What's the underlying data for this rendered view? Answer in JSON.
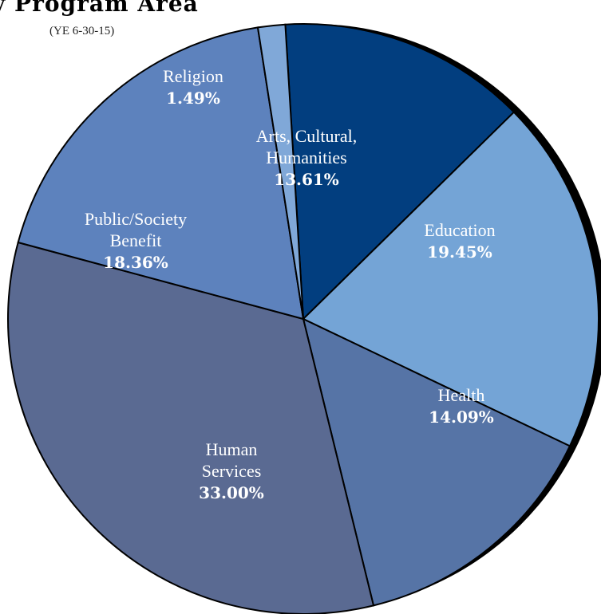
{
  "chart_data": {
    "type": "pie",
    "title": "y Program Area",
    "subtitle": "(YE 6-30-15)",
    "slices": [
      {
        "name": "Arts, Cultural, Humanities",
        "label_lines": [
          "Arts, Cultural,",
          "Humanities"
        ],
        "value": 13.61,
        "value_label": "13.61%",
        "color": "#023e7f"
      },
      {
        "name": "Education",
        "label_lines": [
          "Education"
        ],
        "value": 19.45,
        "value_label": "19.45%",
        "color": "#74a4d6"
      },
      {
        "name": "Health",
        "label_lines": [
          "Health"
        ],
        "value": 14.09,
        "value_label": "14.09%",
        "color": "#5674a6"
      },
      {
        "name": "Human Services",
        "label_lines": [
          "Human",
          "Services"
        ],
        "value": 33.0,
        "value_label": "33.00%",
        "color": "#5a6a92"
      },
      {
        "name": "Public/Society Benefit",
        "label_lines": [
          "Public/Society",
          "Benefit"
        ],
        "value": 18.36,
        "value_label": "18.36%",
        "color": "#5d82bd"
      },
      {
        "name": "Religion",
        "label_lines": [
          "Religion"
        ],
        "value": 1.49,
        "value_label": "1.49%",
        "color": "#80a8d8"
      }
    ],
    "shadow_color": "#000000",
    "outline_color": "#000000"
  }
}
